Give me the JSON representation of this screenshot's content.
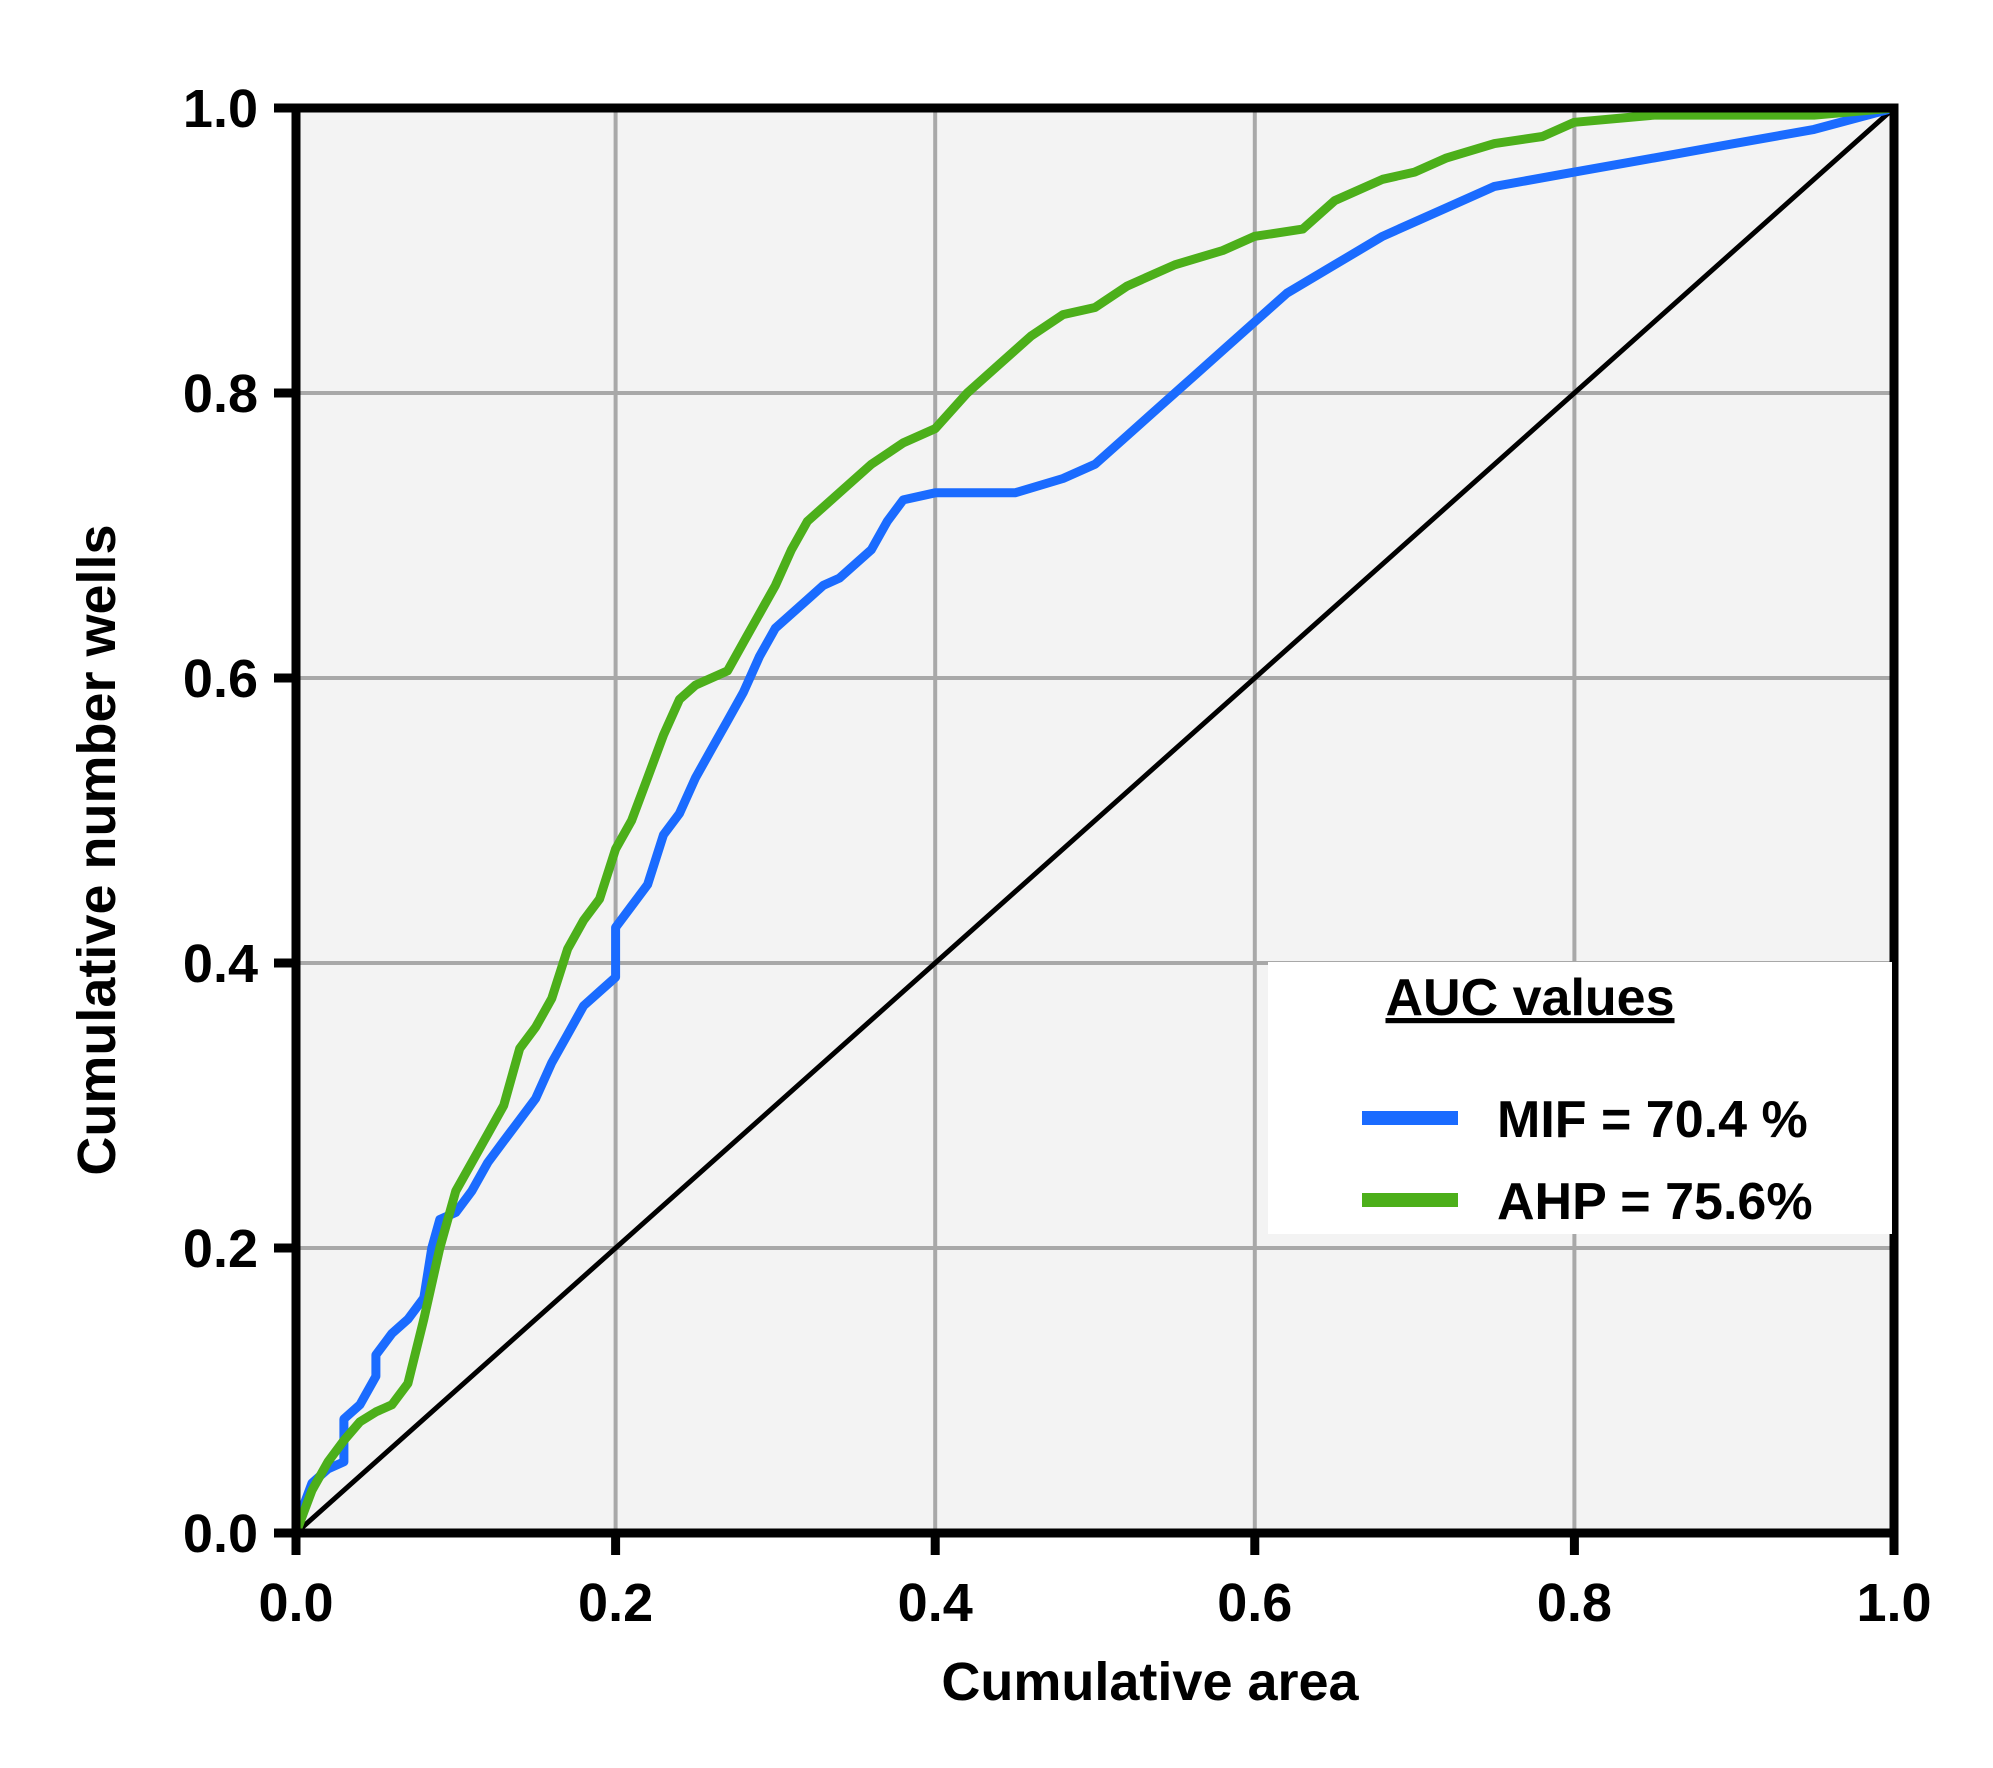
{
  "chart_data": {
    "type": "line",
    "title": "",
    "xlabel": "Cumulative area",
    "ylabel": "Cumulative number wells",
    "xlim": [
      0.0,
      1.0
    ],
    "ylim": [
      0.0,
      1.0
    ],
    "x_ticks": [
      "0.0",
      "0.2",
      "0.4",
      "0.6",
      "0.8",
      "1.0"
    ],
    "y_ticks": [
      "0.0",
      "0.2",
      "0.4",
      "0.6",
      "0.8",
      "1.0"
    ],
    "grid": true,
    "legend": {
      "title": "AUC values",
      "position": "lower-right",
      "entries": [
        {
          "label": "MIF = 70.4 %",
          "color": "#1a6bff"
        },
        {
          "label": "AHP = 75.6%",
          "color": "#4caf1a"
        }
      ]
    },
    "series": [
      {
        "name": "MIF = 70.4 %",
        "color": "#1a6bff",
        "points": [
          [
            0.0,
            0.0
          ],
          [
            0.005,
            0.02
          ],
          [
            0.01,
            0.035
          ],
          [
            0.02,
            0.045
          ],
          [
            0.03,
            0.05
          ],
          [
            0.03,
            0.08
          ],
          [
            0.04,
            0.09
          ],
          [
            0.05,
            0.11
          ],
          [
            0.05,
            0.125
          ],
          [
            0.06,
            0.14
          ],
          [
            0.07,
            0.15
          ],
          [
            0.08,
            0.165
          ],
          [
            0.085,
            0.2
          ],
          [
            0.09,
            0.22
          ],
          [
            0.1,
            0.225
          ],
          [
            0.11,
            0.24
          ],
          [
            0.12,
            0.26
          ],
          [
            0.13,
            0.275
          ],
          [
            0.14,
            0.29
          ],
          [
            0.15,
            0.305
          ],
          [
            0.16,
            0.33
          ],
          [
            0.17,
            0.35
          ],
          [
            0.18,
            0.37
          ],
          [
            0.19,
            0.38
          ],
          [
            0.2,
            0.39
          ],
          [
            0.2,
            0.425
          ],
          [
            0.21,
            0.44
          ],
          [
            0.22,
            0.455
          ],
          [
            0.23,
            0.49
          ],
          [
            0.24,
            0.505
          ],
          [
            0.25,
            0.53
          ],
          [
            0.26,
            0.55
          ],
          [
            0.27,
            0.57
          ],
          [
            0.28,
            0.59
          ],
          [
            0.29,
            0.615
          ],
          [
            0.3,
            0.635
          ],
          [
            0.31,
            0.645
          ],
          [
            0.32,
            0.655
          ],
          [
            0.33,
            0.665
          ],
          [
            0.34,
            0.67
          ],
          [
            0.35,
            0.68
          ],
          [
            0.36,
            0.69
          ],
          [
            0.37,
            0.71
          ],
          [
            0.38,
            0.725
          ],
          [
            0.4,
            0.73
          ],
          [
            0.45,
            0.73
          ],
          [
            0.48,
            0.74
          ],
          [
            0.5,
            0.75
          ],
          [
            0.52,
            0.77
          ],
          [
            0.54,
            0.79
          ],
          [
            0.56,
            0.81
          ],
          [
            0.58,
            0.83
          ],
          [
            0.6,
            0.85
          ],
          [
            0.62,
            0.87
          ],
          [
            0.65,
            0.89
          ],
          [
            0.68,
            0.91
          ],
          [
            0.7,
            0.92
          ],
          [
            0.72,
            0.93
          ],
          [
            0.75,
            0.945
          ],
          [
            0.8,
            0.955
          ],
          [
            0.85,
            0.965
          ],
          [
            0.9,
            0.975
          ],
          [
            0.95,
            0.985
          ],
          [
            1.0,
            1.0
          ]
        ]
      },
      {
        "name": "AHP = 75.6%",
        "color": "#4caf1a",
        "points": [
          [
            0.0,
            0.0
          ],
          [
            0.005,
            0.015
          ],
          [
            0.01,
            0.03
          ],
          [
            0.02,
            0.05
          ],
          [
            0.03,
            0.065
          ],
          [
            0.04,
            0.078
          ],
          [
            0.05,
            0.085
          ],
          [
            0.06,
            0.09
          ],
          [
            0.07,
            0.105
          ],
          [
            0.08,
            0.15
          ],
          [
            0.09,
            0.2
          ],
          [
            0.1,
            0.24
          ],
          [
            0.11,
            0.26
          ],
          [
            0.12,
            0.28
          ],
          [
            0.13,
            0.3
          ],
          [
            0.14,
            0.34
          ],
          [
            0.15,
            0.355
          ],
          [
            0.16,
            0.375
          ],
          [
            0.17,
            0.41
          ],
          [
            0.18,
            0.43
          ],
          [
            0.19,
            0.445
          ],
          [
            0.2,
            0.48
          ],
          [
            0.21,
            0.5
          ],
          [
            0.22,
            0.53
          ],
          [
            0.23,
            0.56
          ],
          [
            0.24,
            0.585
          ],
          [
            0.25,
            0.595
          ],
          [
            0.27,
            0.605
          ],
          [
            0.28,
            0.625
          ],
          [
            0.29,
            0.645
          ],
          [
            0.3,
            0.665
          ],
          [
            0.31,
            0.69
          ],
          [
            0.32,
            0.71
          ],
          [
            0.34,
            0.73
          ],
          [
            0.36,
            0.75
          ],
          [
            0.38,
            0.765
          ],
          [
            0.4,
            0.775
          ],
          [
            0.42,
            0.8
          ],
          [
            0.44,
            0.82
          ],
          [
            0.46,
            0.84
          ],
          [
            0.48,
            0.855
          ],
          [
            0.5,
            0.86
          ],
          [
            0.52,
            0.875
          ],
          [
            0.55,
            0.89
          ],
          [
            0.58,
            0.9
          ],
          [
            0.6,
            0.91
          ],
          [
            0.63,
            0.915
          ],
          [
            0.65,
            0.935
          ],
          [
            0.68,
            0.95
          ],
          [
            0.7,
            0.955
          ],
          [
            0.72,
            0.965
          ],
          [
            0.75,
            0.975
          ],
          [
            0.78,
            0.98
          ],
          [
            0.8,
            0.99
          ],
          [
            0.85,
            0.995
          ],
          [
            0.9,
            0.995
          ],
          [
            0.95,
            0.995
          ],
          [
            1.0,
            1.0
          ]
        ]
      },
      {
        "name": "",
        "color": "#000000",
        "points": [
          [
            0.0,
            0.0
          ],
          [
            1.0,
            1.0
          ]
        ]
      }
    ]
  }
}
